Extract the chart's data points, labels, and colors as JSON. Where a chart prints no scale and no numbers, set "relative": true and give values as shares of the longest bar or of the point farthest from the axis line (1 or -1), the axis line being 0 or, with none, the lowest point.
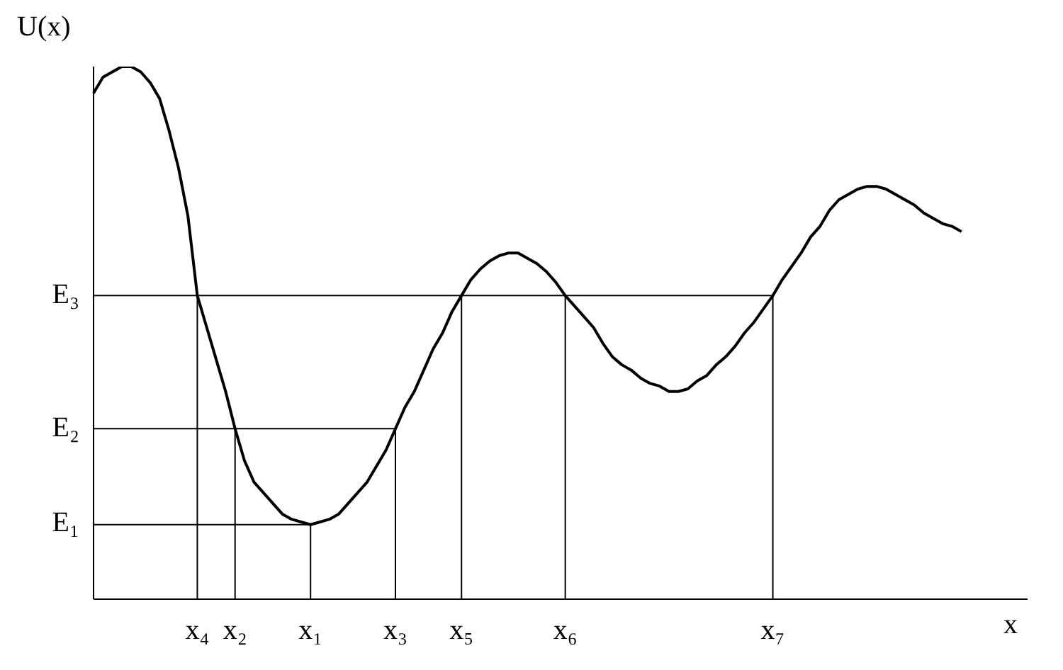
{
  "chart_data": {
    "type": "line",
    "relative": true,
    "xlabel": "x",
    "ylabel": "U(x)",
    "categories": [
      null,
      null,
      null,
      null,
      null,
      null,
      null,
      null,
      null,
      null,
      null,
      "x₄",
      null,
      null,
      null,
      "x₂",
      null,
      null,
      null,
      null,
      null,
      null,
      null,
      "x₁",
      null,
      null,
      null,
      null,
      null,
      null,
      null,
      null,
      "x₃",
      null,
      null,
      null,
      null,
      null,
      null,
      "x₅",
      null,
      null,
      null,
      null,
      null,
      null,
      null,
      null,
      null,
      null,
      "x₆",
      null,
      null,
      null,
      null,
      null,
      null,
      null,
      null,
      null,
      null,
      null,
      null,
      null,
      null,
      null,
      null,
      null,
      null,
      null,
      null,
      null,
      "x₇",
      null,
      null,
      null,
      null,
      null,
      null,
      null,
      null,
      null,
      null,
      null,
      null,
      null,
      null,
      null,
      null,
      null,
      null,
      null,
      null,
      null,
      null,
      null,
      null,
      null,
      null,
      null
    ],
    "series": [
      {
        "color": "#000000",
        "values": [
          0.95,
          0.98,
          0.99,
          1.0,
          1.0,
          0.99,
          0.97,
          0.94,
          0.88,
          0.81,
          0.72,
          0.57,
          0.51,
          0.45,
          0.39,
          0.32,
          0.26,
          0.22,
          0.2,
          0.18,
          0.16,
          0.15,
          0.145,
          0.14,
          0.145,
          0.15,
          0.16,
          0.18,
          0.2,
          0.22,
          0.25,
          0.28,
          0.32,
          0.36,
          0.39,
          0.43,
          0.47,
          0.5,
          0.54,
          0.57,
          0.6,
          0.62,
          0.635,
          0.645,
          0.65,
          0.65,
          0.64,
          0.63,
          0.615,
          0.595,
          0.57,
          0.55,
          0.53,
          0.51,
          0.48,
          0.455,
          0.44,
          0.43,
          0.415,
          0.405,
          0.4,
          0.39,
          0.39,
          0.395,
          0.41,
          0.42,
          0.44,
          0.455,
          0.475,
          0.5,
          0.52,
          0.545,
          0.57,
          0.6,
          0.625,
          0.65,
          0.68,
          0.7,
          0.73,
          0.75,
          0.76,
          0.77,
          0.775,
          0.775,
          0.77,
          0.76,
          0.75,
          0.74,
          0.725,
          0.715,
          0.705,
          0.7,
          0.69,
          null,
          null,
          null,
          null,
          null,
          null,
          null
        ]
      },
      {
        "name": "E₃",
        "color": "#000000",
        "values": [
          0.57,
          0.57,
          0.57,
          0.57,
          0.57,
          0.57,
          0.57,
          0.57,
          0.57,
          0.57,
          0.57,
          0.57,
          0.57,
          0.57,
          0.57,
          0.57,
          0.57,
          0.57,
          0.57,
          0.57,
          0.57,
          0.57,
          0.57,
          0.57,
          0.57,
          0.57,
          0.57,
          0.57,
          0.57,
          0.57,
          0.57,
          0.57,
          0.57,
          0.57,
          0.57,
          0.57,
          0.57,
          0.57,
          0.57,
          0.57,
          0.57,
          0.57,
          0.57,
          0.57,
          0.57,
          0.57,
          0.57,
          0.57,
          0.57,
          0.57,
          0.57,
          0.57,
          0.57,
          0.57,
          0.57,
          0.57,
          0.57,
          0.57,
          0.57,
          0.57,
          0.57,
          0.57,
          0.57,
          0.57,
          0.57,
          0.57,
          0.57,
          0.57,
          0.57,
          0.57,
          0.57,
          0.57,
          0.57,
          null,
          null,
          null,
          null,
          null,
          null,
          null,
          null,
          null,
          null,
          null,
          null,
          null,
          null,
          null,
          null,
          null,
          null,
          null,
          null,
          null,
          null,
          null,
          null,
          null,
          null,
          null
        ]
      },
      {
        "name": "E₂",
        "color": "#000000",
        "values": [
          0.32,
          0.32,
          0.32,
          0.32,
          0.32,
          0.32,
          0.32,
          0.32,
          0.32,
          0.32,
          0.32,
          0.32,
          0.32,
          0.32,
          0.32,
          0.32,
          0.32,
          0.32,
          0.32,
          0.32,
          0.32,
          0.32,
          0.32,
          0.32,
          0.32,
          0.32,
          0.32,
          0.32,
          0.32,
          0.32,
          0.32,
          0.32,
          0.32,
          null,
          null,
          null,
          null,
          null,
          null,
          null,
          null,
          null,
          null,
          null,
          null,
          null,
          null,
          null,
          null,
          null,
          null,
          null,
          null,
          null,
          null,
          null,
          null,
          null,
          null,
          null,
          null,
          null,
          null,
          null,
          null,
          null,
          null,
          null,
          null,
          null,
          null,
          null,
          null,
          null,
          null,
          null,
          null,
          null,
          null,
          null,
          null,
          null,
          null,
          null,
          null,
          null,
          null,
          null,
          null,
          null,
          null,
          null,
          null,
          null,
          null,
          null,
          null,
          null,
          null,
          null
        ]
      },
      {
        "name": "E₁",
        "color": "#000000",
        "values": [
          0.14,
          0.14,
          0.14,
          0.14,
          0.14,
          0.14,
          0.14,
          0.14,
          0.14,
          0.14,
          0.14,
          0.14,
          0.14,
          0.14,
          0.14,
          0.14,
          0.14,
          0.14,
          0.14,
          0.14,
          0.14,
          0.14,
          0.14,
          0.14,
          null,
          null,
          null,
          null,
          null,
          null,
          null,
          null,
          null,
          null,
          null,
          null,
          null,
          null,
          null,
          null,
          null,
          null,
          null,
          null,
          null,
          null,
          null,
          null,
          null,
          null,
          null,
          null,
          null,
          null,
          null,
          null,
          null,
          null,
          null,
          null,
          null,
          null,
          null,
          null,
          null,
          null,
          null,
          null,
          null,
          null,
          null,
          null,
          null,
          null,
          null,
          null,
          null,
          null,
          null,
          null,
          null,
          null,
          null,
          null,
          null,
          null,
          null,
          null,
          null,
          null,
          null,
          null,
          null,
          null,
          null,
          null,
          null,
          null,
          null,
          null
        ]
      }
    ],
    "ref_lines": [
      {
        "axis": "x",
        "value": "x₄"
      },
      {
        "axis": "x",
        "value": "x₂"
      },
      {
        "axis": "x",
        "value": "x₁"
      },
      {
        "axis": "x",
        "value": "x₃"
      },
      {
        "axis": "x",
        "value": "x₅"
      },
      {
        "axis": "x",
        "value": "x₆"
      },
      {
        "axis": "x",
        "value": "x₇"
      }
    ]
  }
}
